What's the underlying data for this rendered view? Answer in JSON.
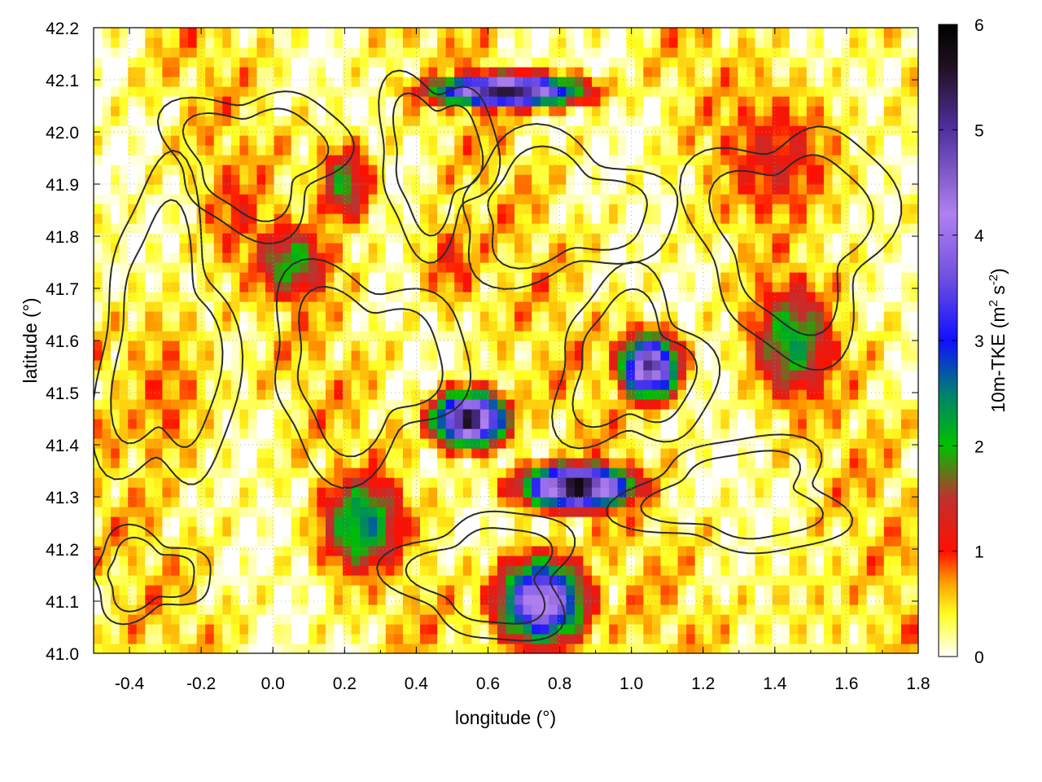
{
  "chart_data": {
    "type": "heatmap",
    "title": "",
    "xlabel": "longitude (°)",
    "ylabel": "latitude (°)",
    "xlim": [
      -0.5,
      1.8
    ],
    "ylim": [
      41.0,
      42.2
    ],
    "xticks": [
      {
        "value": -0.4,
        "label": "-0.4"
      },
      {
        "value": -0.2,
        "label": "-0.2"
      },
      {
        "value": 0.0,
        "label": "0.0"
      },
      {
        "value": 0.2,
        "label": "0.2"
      },
      {
        "value": 0.4,
        "label": "0.4"
      },
      {
        "value": 0.6,
        "label": "0.6"
      },
      {
        "value": 0.8,
        "label": "0.8"
      },
      {
        "value": 1.0,
        "label": "1.0"
      },
      {
        "value": 1.2,
        "label": "1.2"
      },
      {
        "value": 1.4,
        "label": "1.4"
      },
      {
        "value": 1.6,
        "label": "1.6"
      },
      {
        "value": 1.8,
        "label": "1.8"
      }
    ],
    "yticks": [
      {
        "value": 41.0,
        "label": "41.0"
      },
      {
        "value": 41.1,
        "label": "41.1"
      },
      {
        "value": 41.2,
        "label": "41.2"
      },
      {
        "value": 41.3,
        "label": "41.3"
      },
      {
        "value": 41.4,
        "label": "41.4"
      },
      {
        "value": 41.5,
        "label": "41.5"
      },
      {
        "value": 41.6,
        "label": "41.6"
      },
      {
        "value": 41.7,
        "label": "41.7"
      },
      {
        "value": 41.8,
        "label": "41.8"
      },
      {
        "value": 41.9,
        "label": "41.9"
      },
      {
        "value": 42.0,
        "label": "42.0"
      },
      {
        "value": 42.1,
        "label": "42.1"
      },
      {
        "value": 42.2,
        "label": "42.2"
      }
    ],
    "grid": true,
    "colorbar": {
      "position": "right",
      "label_main": "10m-TKE (m",
      "label_sup1": "2",
      "label_mid": " s",
      "label_sup2": "-2",
      "label_end": ")",
      "range": [
        0,
        6
      ],
      "ticks": [
        {
          "value": 0,
          "label": "0"
        },
        {
          "value": 1,
          "label": "1"
        },
        {
          "value": 2,
          "label": "2"
        },
        {
          "value": 3,
          "label": "3"
        },
        {
          "value": 4,
          "label": "4"
        },
        {
          "value": 5,
          "label": "5"
        },
        {
          "value": 6,
          "label": "6"
        }
      ],
      "color_stops": [
        {
          "value": 0.0,
          "color": "#ffffff"
        },
        {
          "value": 0.4,
          "color": "#ffff20"
        },
        {
          "value": 0.7,
          "color": "#ffa000"
        },
        {
          "value": 1.0,
          "color": "#ff1000"
        },
        {
          "value": 1.5,
          "color": "#c03030"
        },
        {
          "value": 2.0,
          "color": "#00c000"
        },
        {
          "value": 2.5,
          "color": "#008070"
        },
        {
          "value": 3.0,
          "color": "#1010ff"
        },
        {
          "value": 3.6,
          "color": "#7050e0"
        },
        {
          "value": 4.2,
          "color": "#b080f0"
        },
        {
          "value": 5.0,
          "color": "#5030a0"
        },
        {
          "value": 5.6,
          "color": "#201020"
        },
        {
          "value": 6.0,
          "color": "#000000"
        }
      ]
    },
    "field_features": [
      {
        "lon": -0.35,
        "lat": 41.1,
        "value": 0.15,
        "sx": 0.25,
        "sy": 0.12
      },
      {
        "lon": 1.55,
        "lat": 41.1,
        "value": 0.4,
        "sx": 0.3,
        "sy": 0.15
      },
      {
        "lon": 0.85,
        "lat": 41.8,
        "value": 0.1,
        "sx": 0.25,
        "sy": 0.12
      },
      {
        "lon": 0.65,
        "lat": 41.6,
        "value": 0.35,
        "sx": 0.15,
        "sy": 0.2
      },
      {
        "lon": -0.1,
        "lat": 41.85,
        "value": 1.0,
        "sx": 0.12,
        "sy": 0.15
      },
      {
        "lon": 0.05,
        "lat": 41.75,
        "value": 2.0,
        "sx": 0.12,
        "sy": 0.08
      },
      {
        "lon": 0.2,
        "lat": 41.9,
        "value": 1.9,
        "sx": 0.08,
        "sy": 0.08
      },
      {
        "lon": 0.55,
        "lat": 41.45,
        "value": 5.5,
        "sx": 0.1,
        "sy": 0.05
      },
      {
        "lon": 0.85,
        "lat": 41.32,
        "value": 5.8,
        "sx": 0.15,
        "sy": 0.04
      },
      {
        "lon": 1.05,
        "lat": 41.55,
        "value": 5.0,
        "sx": 0.08,
        "sy": 0.06
      },
      {
        "lon": 0.65,
        "lat": 42.08,
        "value": 5.5,
        "sx": 0.2,
        "sy": 0.03
      },
      {
        "lon": 0.25,
        "lat": 41.25,
        "value": 2.5,
        "sx": 0.12,
        "sy": 0.1
      },
      {
        "lon": 0.75,
        "lat": 41.1,
        "value": 4.5,
        "sx": 0.12,
        "sy": 0.08
      },
      {
        "lon": 1.45,
        "lat": 41.6,
        "value": 2.2,
        "sx": 0.12,
        "sy": 0.12
      },
      {
        "lon": 1.4,
        "lat": 41.95,
        "value": 1.2,
        "sx": 0.2,
        "sy": 0.15
      },
      {
        "lon": -0.3,
        "lat": 41.5,
        "value": 0.8,
        "sx": 0.15,
        "sy": 0.2
      },
      {
        "lon": 0.5,
        "lat": 41.75,
        "value": 1.0,
        "sx": 0.1,
        "sy": 0.1
      }
    ]
  }
}
